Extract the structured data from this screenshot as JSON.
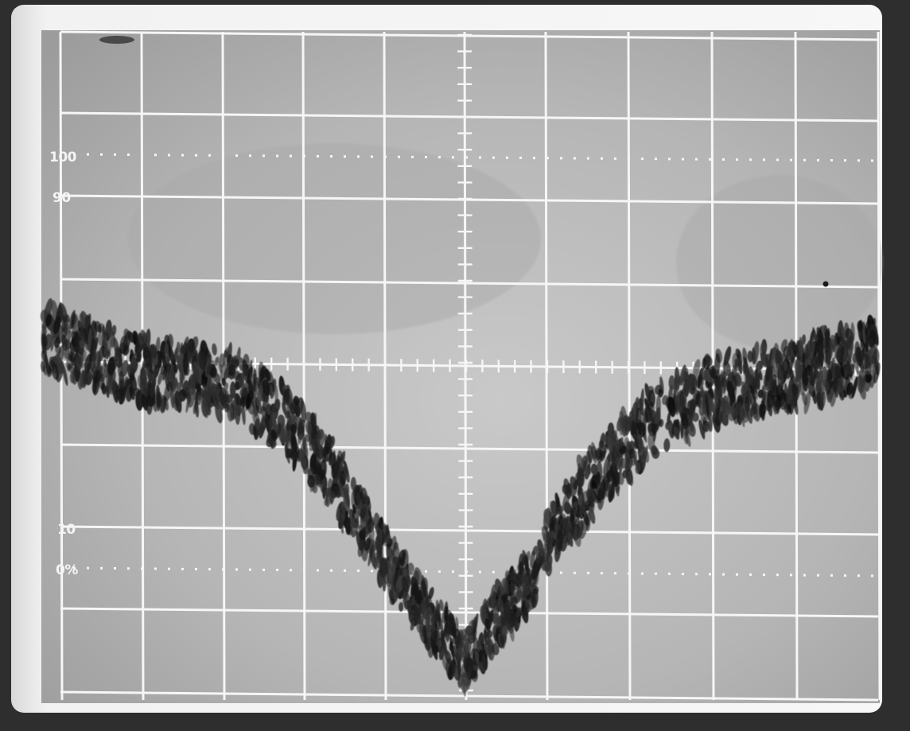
{
  "image": {
    "subject": "oscilloscope-screen-photo",
    "colors": {
      "bezel": "#2e2e2e",
      "screen": "#b7b7b7",
      "graticule": "#f6f6f6",
      "trace": "#1c1c1c"
    }
  },
  "graticule": {
    "labels": {
      "l100": "100",
      "l90": "90",
      "l10": "10",
      "l0": "0%"
    }
  }
}
